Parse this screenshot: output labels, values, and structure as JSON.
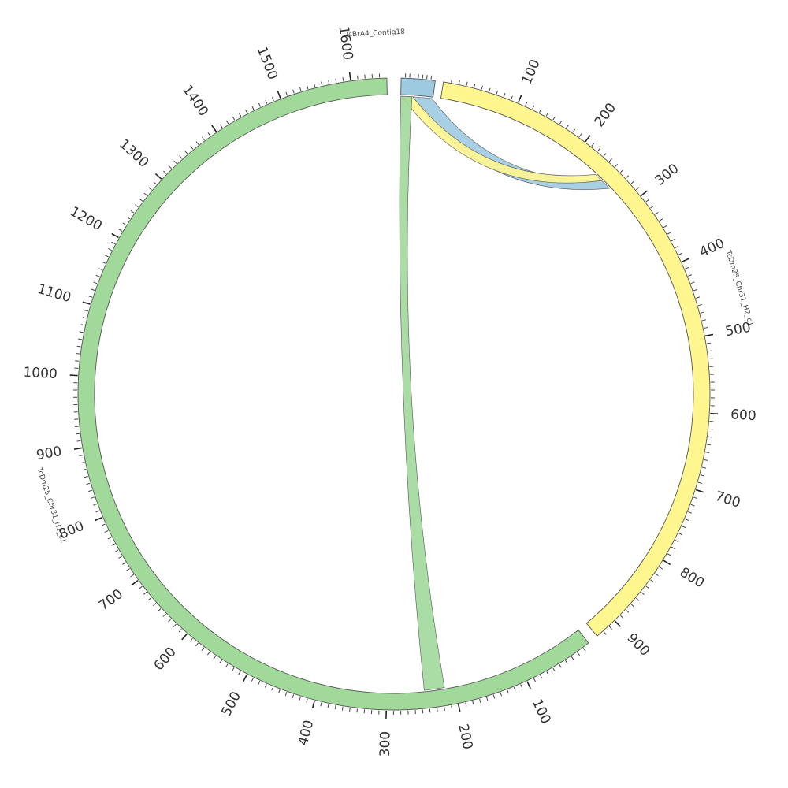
{
  "segments": [
    {
      "id": "contig18",
      "label": "TcBrA4_Contig18",
      "length": 80,
      "color": "#9ecae1",
      "arc": [
        1.3,
        7.5
      ],
      "tick_labels": [],
      "label_angle": 357
    },
    {
      "id": "h2",
      "label": "TcDm25_Chr31_H2_c1",
      "length": 930,
      "color": "#fff68f",
      "arc": [
        9.0,
        140.0
      ],
      "tick_labels": [
        "100",
        "200",
        "300",
        "400",
        "500",
        "600",
        "700",
        "800",
        "900"
      ],
      "label_angle": 73
    },
    {
      "id": "h1",
      "label": "TcDm25_Chr31_H1_c1",
      "length": 1650,
      "color": "#a1d99b",
      "arc": [
        142.0,
        358.7
      ],
      "tick_labels": [
        "100",
        "200",
        "300",
        "400",
        "500",
        "600",
        "700",
        "800",
        "900",
        "1000",
        "1100",
        "1200",
        "1300",
        "1400",
        "1500",
        "1600"
      ],
      "label_angle": 252
    }
  ],
  "links": [
    {
      "color": "#9ecae1",
      "from": {
        "segment": "contig18",
        "start": 30,
        "end": 78
      },
      "to": {
        "segment": "h2",
        "start": 250,
        "end": 265
      }
    },
    {
      "color": "#fff68f",
      "from": {
        "segment": "contig18",
        "start": 2,
        "end": 30
      },
      "to": {
        "segment": "h2",
        "start": 238,
        "end": 250
      }
    },
    {
      "color": "#a1d99b",
      "from": {
        "segment": "contig18",
        "start": 0,
        "end": 28
      },
      "to": {
        "segment": "h1",
        "start": 215,
        "end": 245
      }
    }
  ]
}
